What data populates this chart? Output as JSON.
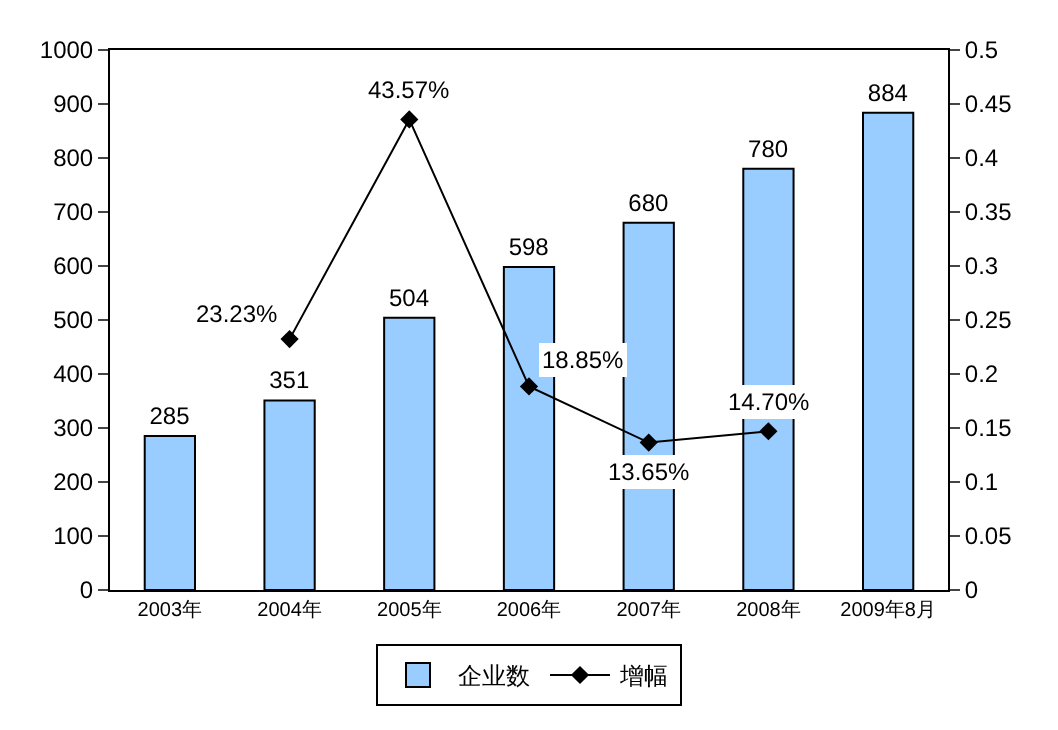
{
  "chart_data": {
    "type": "bar",
    "categories": [
      "2003年",
      "2004年",
      "2005年",
      "2006年",
      "2007年",
      "2008年",
      "2009年8月"
    ],
    "series": [
      {
        "name": "企业数",
        "color": "#99ccff",
        "values": [
          285,
          351,
          504,
          598,
          680,
          780,
          884
        ],
        "value_labels": [
          "285",
          "351",
          "504",
          "598",
          "680",
          "780",
          "884"
        ]
      },
      {
        "name": "增幅",
        "type": "line",
        "axis": "y2",
        "color": "#000000",
        "marker": "diamond",
        "values": [
          null,
          0.2323,
          0.4357,
          0.1885,
          0.1365,
          0.147,
          null
        ],
        "value_labels": [
          null,
          "23.23%",
          "43.57%",
          "18.85%",
          "13.65%",
          "14.70%",
          null
        ]
      }
    ],
    "ylim": [
      0,
      1000
    ],
    "yticks": [
      0,
      100,
      200,
      300,
      400,
      500,
      600,
      700,
      800,
      900,
      1000
    ],
    "y2lim": [
      0,
      0.5
    ],
    "y2ticks": [
      {
        "value": 0,
        "label": "0"
      },
      0.05,
      0.1,
      0.15,
      0.2,
      0.25,
      0.3,
      0.35,
      0.4,
      0.45,
      0.5
    ],
    "grid": false,
    "legend": "bottom"
  }
}
